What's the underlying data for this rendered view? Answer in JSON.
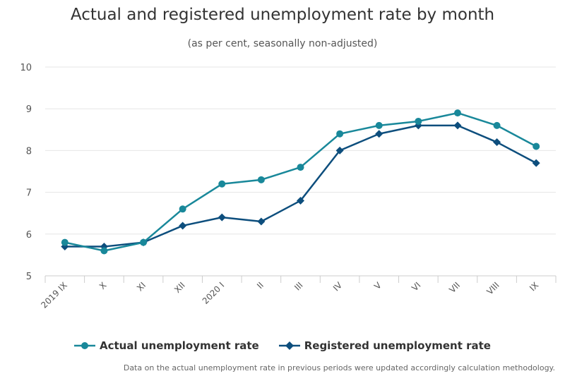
{
  "chart_data": {
    "type": "line",
    "title": "Actual and registered unemployment rate by month",
    "subtitle": "(as per cent, seasonally non-adjusted)",
    "categories": [
      "2019 IX",
      "X",
      "XI",
      "XII",
      "2020 I",
      "II",
      "III",
      "IV",
      "V",
      "VI",
      "VII",
      "VIII",
      "IX"
    ],
    "ylim": [
      5,
      10
    ],
    "yticks": [
      5,
      6,
      7,
      8,
      9,
      10
    ],
    "grid": true,
    "legend_position": "bottom",
    "series": [
      {
        "name": "Actual unemployment rate",
        "color": "#19889a",
        "marker": "circle",
        "values": [
          5.8,
          5.6,
          5.8,
          6.6,
          7.2,
          7.3,
          7.6,
          8.4,
          8.6,
          8.7,
          8.9,
          8.6,
          8.1
        ]
      },
      {
        "name": "Registered unemployment rate",
        "color": "#0d4e7d",
        "marker": "diamond",
        "values": [
          5.7,
          5.7,
          5.8,
          6.2,
          6.4,
          6.3,
          6.8,
          8.0,
          8.4,
          8.6,
          8.6,
          8.2,
          7.7
        ]
      }
    ],
    "footnote": "Data on the actual unemployment rate in previous periods were updated accordingly calculation methodology."
  }
}
